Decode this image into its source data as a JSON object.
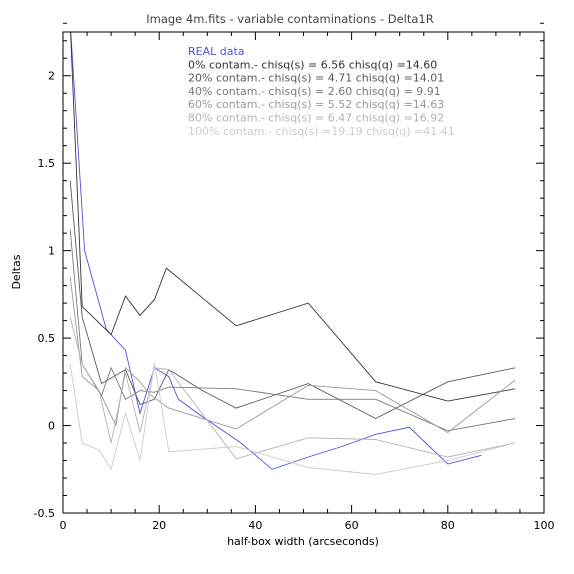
{
  "chart_data": {
    "type": "line",
    "title": "Image 4m.fits - variable contaminations - Delta1R",
    "xlabel": "half-box width (arcseconds)",
    "ylabel": "Deltas",
    "xlim": [
      0,
      100
    ],
    "ylim": [
      -0.5,
      2.25
    ],
    "x_ticks": [
      "0",
      "20",
      "40",
      "60",
      "80",
      "100"
    ],
    "y_ticks": [
      "-0.5",
      "0",
      "0.5",
      "1",
      "1.5",
      "2"
    ],
    "grid": false,
    "legend_position": "top-right",
    "series": [
      {
        "name": "REAL data",
        "color": "#5050e6",
        "x": [
          1.5,
          4.5,
          9,
          13,
          16,
          19,
          22,
          24,
          29,
          37,
          43.5,
          51,
          58,
          65,
          72,
          80,
          87
        ],
        "y": [
          2.3,
          1.0,
          0.55,
          0.43,
          0.07,
          0.33,
          0.28,
          0.15,
          0.05,
          -0.1,
          -0.25,
          -0.18,
          -0.12,
          -0.05,
          -0.01,
          -0.22,
          -0.17
        ]
      },
      {
        "name": "0% contam.- chisq(s) = 6.56 chisq(q) =14.60",
        "color": "#333333",
        "x": [
          1.5,
          4,
          10,
          13,
          16,
          19,
          21.5,
          36,
          51,
          65,
          80,
          94
        ],
        "y": [
          2.3,
          0.68,
          0.52,
          0.74,
          0.63,
          0.72,
          0.9,
          0.57,
          0.7,
          0.25,
          0.14,
          0.21
        ]
      },
      {
        "name": "20% contam.- chisq(s) = 4.71 chisq(q) =14.01",
        "color": "#5a5a5a",
        "x": [
          1.5,
          4,
          8,
          13,
          16,
          19,
          22,
          29,
          36,
          51,
          65,
          80,
          94
        ],
        "y": [
          1.4,
          0.62,
          0.24,
          0.32,
          0.12,
          0.15,
          0.32,
          0.2,
          0.1,
          0.24,
          0.04,
          0.25,
          0.33
        ]
      },
      {
        "name": "40% contam.- chisq(s) = 2.60 chisq(q) = 9.91",
        "color": "#7a7a7a",
        "x": [
          1.5,
          4,
          8,
          10,
          13,
          16,
          19,
          22,
          36,
          51,
          65,
          80,
          94
        ],
        "y": [
          1.12,
          0.35,
          0.17,
          0.33,
          0.15,
          0.2,
          0.19,
          0.22,
          0.21,
          0.15,
          0.15,
          -0.03,
          0.04
        ]
      },
      {
        "name": "60% contam.- chisq(s) = 5.52 chisq(q) =14.63",
        "color": "#999999",
        "x": [
          1.5,
          4,
          7.5,
          11,
          13,
          16,
          18,
          22,
          36,
          51,
          65,
          80,
          94
        ],
        "y": [
          0.85,
          0.28,
          0.2,
          0.0,
          0.33,
          0.25,
          0.18,
          0.1,
          -0.02,
          0.23,
          0.2,
          -0.04,
          0.26
        ]
      },
      {
        "name": "80% contam.- chisq(s) = 6.47 chisq(q) =16.92",
        "color": "#b4b4b4",
        "x": [
          1.5,
          4,
          7.5,
          10,
          13,
          16,
          19,
          22,
          36,
          51,
          65,
          80,
          94
        ],
        "y": [
          0.62,
          0.35,
          0.2,
          -0.1,
          0.3,
          -0.04,
          0.33,
          0.32,
          -0.19,
          -0.07,
          -0.08,
          -0.18,
          -0.1
        ]
      },
      {
        "name": "100% contam.- chisq(s) =19.19 chisq(q) =41.41",
        "color": "#cccccc",
        "x": [
          1.5,
          4,
          7.5,
          10,
          13,
          16,
          19,
          22,
          36,
          51,
          65,
          80,
          94
        ],
        "y": [
          0.35,
          -0.1,
          -0.14,
          -0.25,
          0.07,
          -0.2,
          0.36,
          -0.15,
          -0.12,
          -0.24,
          -0.28,
          -0.2,
          -0.1
        ]
      }
    ]
  }
}
